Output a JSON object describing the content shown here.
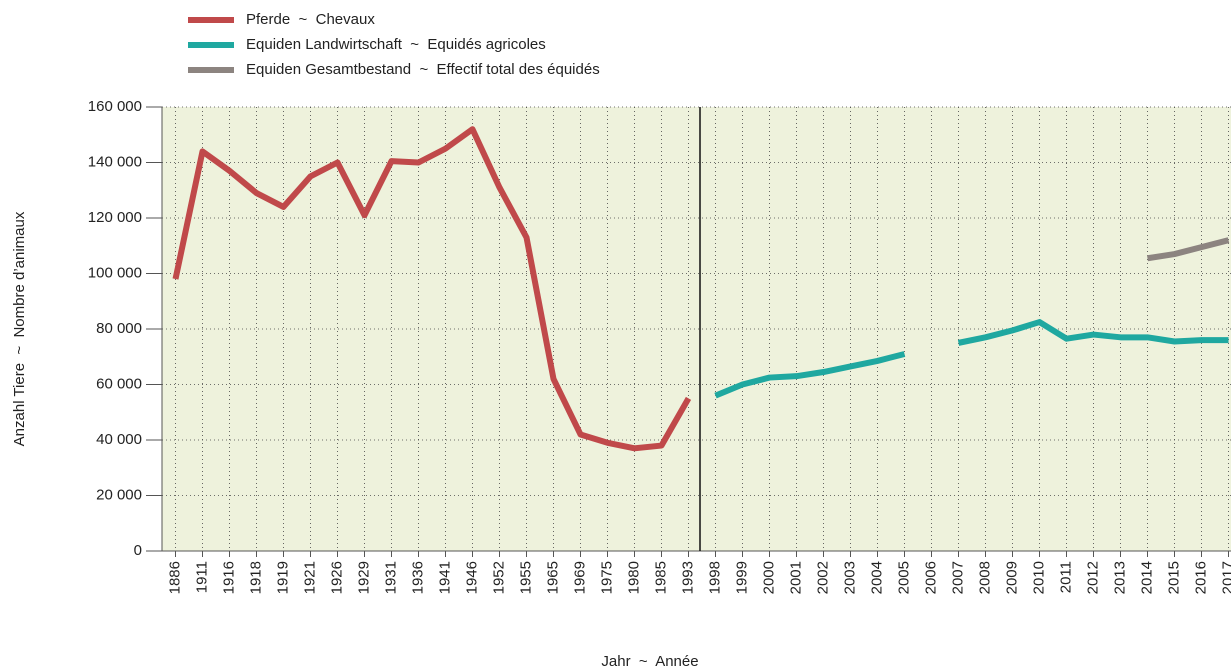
{
  "chart_data": {
    "type": "line",
    "categories": [
      "1886",
      "1911",
      "1916",
      "1918",
      "1919",
      "1921",
      "1926",
      "1929",
      "1931",
      "1936",
      "1941",
      "1946",
      "1952",
      "1955",
      "1965",
      "1969",
      "1975",
      "1980",
      "1985",
      "1993",
      "1998",
      "1999",
      "2000",
      "2001",
      "2002",
      "2003",
      "2004",
      "2005",
      "2006",
      "2007",
      "2008",
      "2009",
      "2010",
      "2011",
      "2012",
      "2013",
      "2014",
      "2015",
      "2016",
      "2017"
    ],
    "series": [
      {
        "name": "Pferde  ~  Chevaux",
        "color": "#c0494a",
        "values": [
          98000,
          144000,
          137000,
          129000,
          124000,
          135000,
          140000,
          121000,
          140500,
          140000,
          145000,
          152000,
          131000,
          113000,
          62000,
          42000,
          39000,
          37000,
          38000,
          55000,
          null,
          null,
          null,
          null,
          null,
          null,
          null,
          null,
          null,
          null,
          null,
          null,
          null,
          null,
          null,
          null,
          null,
          null,
          null,
          null
        ]
      },
      {
        "name": "Equiden Landwirtschaft  ~  Equidés agricoles",
        "color": "#1fa8a0",
        "values": [
          null,
          null,
          null,
          null,
          null,
          null,
          null,
          null,
          null,
          null,
          null,
          null,
          null,
          null,
          null,
          null,
          null,
          null,
          null,
          null,
          56000,
          60000,
          62500,
          63000,
          64500,
          66500,
          68500,
          71000,
          null,
          75000,
          77000,
          79500,
          82500,
          76500,
          78000,
          77000,
          77000,
          75500,
          76000,
          76000
        ]
      },
      {
        "name": "Equiden Gesamtbestand  ~  Effectif total des équidés",
        "color": "#8c8480",
        "values": [
          null,
          null,
          null,
          null,
          null,
          null,
          null,
          null,
          null,
          null,
          null,
          null,
          null,
          null,
          null,
          null,
          null,
          null,
          null,
          null,
          null,
          null,
          null,
          null,
          null,
          null,
          null,
          null,
          null,
          null,
          null,
          null,
          null,
          null,
          null,
          null,
          105500,
          107000,
          109500,
          112000
        ]
      }
    ],
    "ylim": [
      0,
      160000
    ],
    "yticks": [
      0,
      {
        "value": 20000,
        "label": "20 000"
      },
      {
        "value": 40000,
        "label": "40 000"
      },
      {
        "value": 60000,
        "label": "60 000"
      },
      {
        "value": 80000,
        "label": "80 000"
      },
      {
        "value": 100000,
        "label": "100 000"
      },
      {
        "value": 120000,
        "label": "120 000"
      },
      {
        "value": 140000,
        "label": "140 000"
      },
      {
        "value": 160000,
        "label": "160 000"
      }
    ],
    "xlabel": "Jahr  ~  Année",
    "ylabel": "Anzahl Tiere  ~  Nombre d’animaux",
    "grid": true
  }
}
